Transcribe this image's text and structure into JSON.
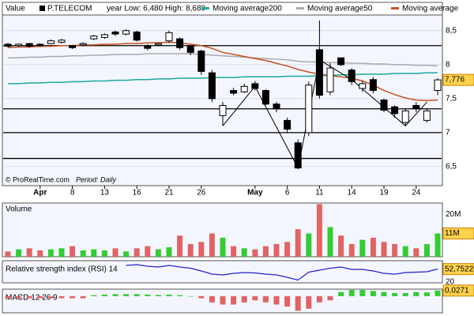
{
  "chart_data": [
    {
      "type": "candlestick",
      "header": "Value",
      "range_note": "year Low: 6,480 High: 8,680",
      "credit": "© ProRealTime.com",
      "period": "Period: Daily",
      "categories": [
        null,
        null,
        null,
        "Apr",
        null,
        null,
        "8",
        null,
        null,
        "13",
        null,
        null,
        "16",
        null,
        null,
        "21",
        null,
        null,
        "26",
        null,
        null,
        null,
        null,
        "May",
        null,
        null,
        "6",
        null,
        null,
        "11",
        null,
        null,
        "14",
        null,
        null,
        "19",
        null,
        null,
        "24",
        null,
        null
      ],
      "ohlc": {
        "name": "P.TELECOM",
        "color": "#000000",
        "up_color": "#ffffff",
        "down_color": "#000000",
        "open": [
          8.3,
          8.28,
          8.31,
          8.3,
          8.31,
          8.33,
          8.28,
          8.29,
          8.38,
          8.4,
          8.48,
          8.45,
          8.48,
          8.28,
          8.29,
          8.35,
          8.38,
          8.27,
          8.2,
          7.88,
          7.25,
          7.62,
          7.6,
          7.72,
          7.62,
          7.42,
          7.18,
          6.85,
          7.0,
          8.22,
          7.6,
          8.1,
          7.92,
          7.65,
          7.78,
          7.48,
          7.38,
          7.15,
          7.4,
          7.18,
          7.62
        ],
        "high": [
          8.32,
          8.31,
          8.32,
          8.31,
          8.37,
          8.38,
          8.29,
          8.33,
          8.44,
          8.46,
          8.5,
          8.52,
          8.5,
          8.3,
          8.33,
          8.5,
          8.4,
          8.28,
          8.22,
          7.92,
          7.45,
          7.66,
          7.72,
          7.76,
          7.64,
          7.45,
          7.22,
          6.9,
          7.75,
          8.65,
          8.02,
          8.1,
          7.95,
          7.76,
          7.82,
          7.5,
          7.4,
          7.36,
          7.45,
          7.36,
          7.8
        ],
        "low": [
          8.25,
          8.26,
          8.25,
          8.26,
          8.3,
          8.31,
          8.23,
          8.27,
          8.36,
          8.38,
          8.42,
          8.43,
          8.34,
          8.21,
          8.27,
          8.32,
          8.22,
          8.14,
          7.85,
          7.45,
          7.1,
          7.55,
          7.58,
          7.62,
          7.4,
          7.3,
          7.0,
          6.46,
          6.95,
          7.5,
          7.55,
          7.98,
          7.7,
          7.6,
          7.58,
          7.3,
          7.22,
          7.1,
          7.3,
          7.15,
          7.55
        ],
        "close": [
          8.27,
          8.3,
          8.27,
          8.28,
          8.35,
          8.36,
          8.25,
          8.31,
          8.42,
          8.44,
          8.45,
          8.5,
          8.36,
          8.24,
          8.31,
          8.47,
          8.25,
          8.18,
          7.9,
          7.5,
          7.4,
          7.58,
          7.68,
          7.65,
          7.42,
          7.35,
          7.05,
          6.48,
          7.7,
          7.55,
          7.95,
          8.0,
          7.75,
          7.72,
          7.62,
          7.33,
          7.28,
          7.32,
          7.35,
          7.32,
          7.776
        ],
        "last_label": "7,776"
      },
      "series": [
        {
          "name": "Moving average200",
          "color": "#1aa99a",
          "values": [
            7.72,
            7.72,
            7.73,
            7.73,
            7.74,
            7.74,
            7.75,
            7.75,
            7.76,
            7.76,
            7.77,
            7.77,
            7.78,
            7.78,
            7.79,
            7.79,
            7.8,
            7.8,
            7.8,
            7.81,
            7.81,
            7.81,
            7.82,
            7.82,
            7.82,
            7.82,
            7.83,
            7.83,
            7.83,
            7.84,
            7.84,
            7.85,
            7.85,
            7.86,
            7.86,
            7.86,
            7.87,
            7.87,
            7.87,
            7.88,
            7.88
          ]
        },
        {
          "name": "Moving average50",
          "color": "#aaaaaa",
          "values": [
            8.1,
            8.1,
            8.11,
            8.11,
            8.12,
            8.12,
            8.13,
            8.13,
            8.14,
            8.14,
            8.15,
            8.15,
            8.15,
            8.16,
            8.16,
            8.16,
            8.16,
            8.16,
            8.15,
            8.14,
            8.13,
            8.12,
            8.11,
            8.1,
            8.09,
            8.08,
            8.07,
            8.05,
            8.04,
            8.04,
            8.03,
            8.03,
            8.02,
            8.02,
            8.01,
            8.01,
            8.0,
            8.0,
            7.99,
            7.99,
            7.98
          ]
        },
        {
          "name": "Moving average",
          "color": "#c8501e",
          "values": [
            8.25,
            8.26,
            8.26,
            8.27,
            8.27,
            8.28,
            8.28,
            8.29,
            8.29,
            8.3,
            8.3,
            8.31,
            8.31,
            8.32,
            8.32,
            8.33,
            8.32,
            8.3,
            8.28,
            8.24,
            8.18,
            8.15,
            8.12,
            8.09,
            8.06,
            8.02,
            7.98,
            7.93,
            7.89,
            7.86,
            7.84,
            7.82,
            7.8,
            7.76,
            7.7,
            7.62,
            7.56,
            7.51,
            7.48,
            7.47,
            7.48
          ]
        }
      ],
      "hlines": [
        8.28,
        7.35,
        7.0,
        6.62
      ],
      "zigzag": {
        "x": [
          20,
          23,
          27,
          29,
          32,
          37,
          39
        ],
        "y": [
          7.1,
          7.68,
          6.48,
          8.07,
          7.78,
          7.1,
          7.45
        ]
      },
      "ylim": [
        6.22,
        8.73
      ],
      "yticks": [
        {
          "value": 8.5,
          "label": "8,5"
        },
        8,
        {
          "value": 7.5,
          "label": "7,5"
        },
        7,
        {
          "value": 6.5,
          "label": "6,5"
        }
      ],
      "grid": true
    },
    {
      "type": "volume",
      "title": "Volume",
      "up_color": "#33cc33",
      "down_color": "#e06464",
      "values": [
        2.5,
        3.5,
        4,
        3,
        3.5,
        4,
        5,
        3,
        3.5,
        3,
        4,
        2.5,
        4,
        5,
        3.5,
        4.5,
        10,
        6,
        7,
        11,
        9,
        5,
        4,
        3.5,
        5,
        6,
        7,
        13,
        11,
        24.8,
        14,
        10,
        6,
        8,
        9,
        7,
        6,
        5,
        4,
        6,
        11
      ],
      "last_label": "11M",
      "ylim": [
        0,
        25
      ],
      "yticks": [
        {
          "value": 20,
          "label": "20M"
        }
      ]
    },
    {
      "type": "rsi",
      "title": "Relative strength index (RSI) 14",
      "color": "#2222cc",
      "values": [
        null,
        null,
        null,
        null,
        null,
        null,
        null,
        null,
        null,
        null,
        null,
        62,
        64,
        60,
        58,
        62,
        58,
        55,
        48,
        40,
        38,
        42,
        44,
        43,
        40,
        38,
        32,
        25,
        45,
        50,
        55,
        58,
        52,
        52,
        48,
        42,
        40,
        44,
        45,
        46,
        52.7522
      ],
      "last_label": "52,7522",
      "ylim": [
        18,
        72
      ],
      "yticks": [
        20
      ]
    },
    {
      "type": "macd",
      "title": "MACD 12 26 9",
      "up_color": "#33cc33",
      "down_color": "#e06464",
      "values": [
        -0.01,
        -0.01,
        -0.01,
        -0.01,
        -0.01,
        -0.01,
        -0.01,
        -0.01,
        0.005,
        0.008,
        0.01,
        0.01,
        0.01,
        0.008,
        0.006,
        0.008,
        0.005,
        0.0,
        -0.01,
        -0.03,
        -0.04,
        -0.04,
        -0.03,
        -0.02,
        -0.03,
        -0.04,
        -0.05,
        -0.07,
        -0.06,
        -0.03,
        -0.02,
        0.02,
        0.03,
        0.03,
        0.025,
        0.02,
        0.015,
        0.015,
        0.02,
        0.018,
        0.0271
      ],
      "last_label": "0,0271",
      "ylim": [
        -0.08,
        0.03
      ]
    }
  ]
}
